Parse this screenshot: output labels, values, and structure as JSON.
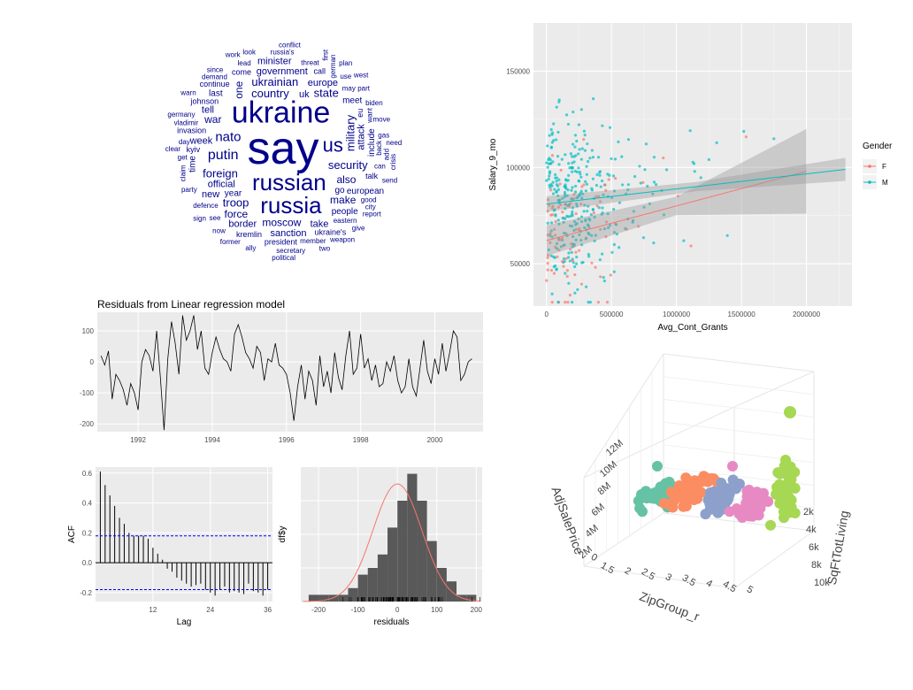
{
  "colors": {
    "ggplot_panel": "#ebebeb",
    "grid": "#ffffff",
    "female": "#f8766d",
    "male": "#00bfc4",
    "wordcloud": "#00008b",
    "acf_bound": "#0000ff",
    "hist_bar": "#595959",
    "density": "#f8766d",
    "cluster_colors": [
      "#66c2a5",
      "#fc8d62",
      "#8da0cb",
      "#e78ac3",
      "#a6d854"
    ]
  },
  "wordcloud": {
    "words": [
      {
        "text": "say",
        "size": 52
      },
      {
        "text": "ukraine",
        "size": 34
      },
      {
        "text": "russian",
        "size": 26
      },
      {
        "text": "russia",
        "size": 26
      },
      {
        "text": "us",
        "size": 22
      },
      {
        "text": "putin",
        "size": 16
      },
      {
        "text": "nato",
        "size": 15
      },
      {
        "text": "country",
        "size": 13
      },
      {
        "text": "security",
        "size": 13
      },
      {
        "text": "ukrainian",
        "size": 13
      },
      {
        "text": "foreign",
        "size": 13
      },
      {
        "text": "military",
        "size": 13
      },
      {
        "text": "troop",
        "size": 13
      },
      {
        "text": "state",
        "size": 13
      },
      {
        "text": "moscow",
        "size": 12
      },
      {
        "text": "also",
        "size": 12
      },
      {
        "text": "make",
        "size": 12
      },
      {
        "text": "war",
        "size": 12
      },
      {
        "text": "one",
        "size": 12
      },
      {
        "text": "force",
        "size": 12
      },
      {
        "text": "official",
        "size": 11
      },
      {
        "text": "europe",
        "size": 11
      },
      {
        "text": "government",
        "size": 11
      },
      {
        "text": "sanction",
        "size": 11
      },
      {
        "text": "week",
        "size": 11
      },
      {
        "text": "attack",
        "size": 11
      },
      {
        "text": "take",
        "size": 11
      },
      {
        "text": "tell",
        "size": 11
      },
      {
        "text": "border",
        "size": 11
      },
      {
        "text": "uk",
        "size": 11
      },
      {
        "text": "minister",
        "size": 11
      },
      {
        "text": "new",
        "size": 11
      },
      {
        "text": "include",
        "size": 10
      },
      {
        "text": "european",
        "size": 10
      },
      {
        "text": "people",
        "size": 10
      },
      {
        "text": "year",
        "size": 10
      },
      {
        "text": "go",
        "size": 10
      },
      {
        "text": "meet",
        "size": 10
      },
      {
        "text": "last",
        "size": 10
      },
      {
        "text": "time",
        "size": 10
      },
      {
        "text": "kyiv",
        "size": 9
      },
      {
        "text": "invasion",
        "size": 9
      },
      {
        "text": "president",
        "size": 9
      },
      {
        "text": "johnson",
        "size": 9
      },
      {
        "text": "ukraine's",
        "size": 9
      },
      {
        "text": "call",
        "size": 9
      },
      {
        "text": "eu",
        "size": 9
      },
      {
        "text": "come",
        "size": 9
      },
      {
        "text": "continue",
        "size": 9
      },
      {
        "text": "talk",
        "size": 9
      },
      {
        "text": "kremlin",
        "size": 9
      },
      {
        "text": "eastern",
        "size": 8
      },
      {
        "text": "defence",
        "size": 8
      },
      {
        "text": "want",
        "size": 8
      },
      {
        "text": "threat",
        "size": 8
      },
      {
        "text": "may",
        "size": 8
      },
      {
        "text": "lead",
        "size": 8
      },
      {
        "text": "good",
        "size": 8
      },
      {
        "text": "can",
        "size": 8
      },
      {
        "text": "see",
        "size": 8
      },
      {
        "text": "back",
        "size": 8
      },
      {
        "text": "member",
        "size": 8
      },
      {
        "text": "vladimir",
        "size": 8
      },
      {
        "text": "day",
        "size": 8
      },
      {
        "text": "party",
        "size": 8
      },
      {
        "text": "use",
        "size": 8
      },
      {
        "text": "demand",
        "size": 8
      },
      {
        "text": "german",
        "size": 8
      },
      {
        "text": "russia's",
        "size": 8
      },
      {
        "text": "biden",
        "size": 8
      },
      {
        "text": "get",
        "size": 8
      },
      {
        "text": "secretary",
        "size": 8
      },
      {
        "text": "part",
        "size": 8
      },
      {
        "text": "move",
        "size": 8
      },
      {
        "text": "claim",
        "size": 8
      },
      {
        "text": "city",
        "size": 8
      },
      {
        "text": "ally",
        "size": 8
      },
      {
        "text": "germany",
        "size": 8
      },
      {
        "text": "since",
        "size": 8
      },
      {
        "text": "gas",
        "size": 8
      },
      {
        "text": "now",
        "size": 8
      },
      {
        "text": "add",
        "size": 8
      },
      {
        "text": "look",
        "size": 8
      },
      {
        "text": "former",
        "size": 8
      },
      {
        "text": "conflict",
        "size": 8
      },
      {
        "text": "sign",
        "size": 8
      },
      {
        "text": "report",
        "size": 8
      },
      {
        "text": "weapon",
        "size": 8
      },
      {
        "text": "first",
        "size": 8
      },
      {
        "text": "clear",
        "size": 8
      },
      {
        "text": "plan",
        "size": 8
      },
      {
        "text": "west",
        "size": 8
      },
      {
        "text": "political",
        "size": 8
      },
      {
        "text": "need",
        "size": 8
      },
      {
        "text": "send",
        "size": 8
      },
      {
        "text": "crisis",
        "size": 8
      },
      {
        "text": "give",
        "size": 8
      },
      {
        "text": "two",
        "size": 8
      },
      {
        "text": "warn",
        "size": 8
      },
      {
        "text": "work",
        "size": 8
      }
    ]
  },
  "chart_data": [
    {
      "type": "scatter",
      "xlabel": "Avg_Cont_Grants",
      "ylabel": "Salary_9_mo",
      "x_ticks": [
        "0",
        "500000",
        "1000000",
        "1500000",
        "2000000"
      ],
      "y_ticks": [
        "50000",
        "100000",
        "150000"
      ],
      "xlim": [
        -100000,
        2350000
      ],
      "ylim": [
        28000,
        175000
      ],
      "legend_title": "Gender",
      "legend_position": "right",
      "series": [
        {
          "name": "F",
          "trend": [
            [
              0,
              62000
            ],
            [
              2000000,
              98000
            ]
          ],
          "ci_half_width_ends": [
            8000,
            22000
          ]
        },
        {
          "name": "M",
          "trend": [
            [
              0,
              81000
            ],
            [
              2300000,
              99000
            ]
          ],
          "ci_half_width_ends": [
            4000,
            6000
          ]
        }
      ]
    },
    {
      "type": "line",
      "title": "Residuals from Linear regression model",
      "x_ticks": [
        "1992",
        "1994",
        "1996",
        "1998",
        "2000"
      ],
      "y_ticks": [
        "100",
        "0",
        "-100",
        "-200"
      ],
      "xlim": [
        1990.9,
        2001.3
      ],
      "ylim": [
        -225,
        160
      ],
      "x": [
        1991.0,
        1991.1,
        1991.2,
        1991.3,
        1991.4,
        1991.5,
        1991.6,
        1991.7,
        1991.8,
        1991.9,
        1992.0,
        1992.1,
        1992.2,
        1992.3,
        1992.4,
        1992.5,
        1992.6,
        1992.7,
        1992.8,
        1992.9,
        1993.0,
        1993.1,
        1993.2,
        1993.3,
        1993.4,
        1993.5,
        1993.6,
        1993.7,
        1993.8,
        1993.9,
        1994.0,
        1994.1,
        1994.2,
        1994.3,
        1994.4,
        1994.5,
        1994.6,
        1994.7,
        1994.8,
        1994.9,
        1995.0,
        1995.1,
        1995.2,
        1995.3,
        1995.4,
        1995.5,
        1995.6,
        1995.7,
        1995.8,
        1995.9,
        1996.0,
        1996.1,
        1996.2,
        1996.3,
        1996.4,
        1996.5,
        1996.6,
        1996.7,
        1996.8,
        1996.9,
        1997.0,
        1997.1,
        1997.2,
        1997.3,
        1997.4,
        1997.5,
        1997.6,
        1997.7,
        1997.8,
        1997.9,
        1998.0,
        1998.1,
        1998.2,
        1998.3,
        1998.4,
        1998.5,
        1998.6,
        1998.7,
        1998.8,
        1998.9,
        1999.0,
        1999.1,
        1999.2,
        1999.3,
        1999.4,
        1999.5,
        1999.6,
        1999.7,
        1999.8,
        1999.9,
        2000.0,
        2000.1,
        2000.2,
        2000.3,
        2000.4,
        2000.5,
        2000.6,
        2000.7,
        2000.8,
        2000.9,
        2001.0
      ],
      "values": [
        20,
        -10,
        35,
        -120,
        -40,
        -60,
        -90,
        -140,
        -70,
        -100,
        -155,
        0,
        40,
        20,
        -30,
        100,
        -50,
        -220,
        10,
        130,
        60,
        -40,
        150,
        70,
        100,
        150,
        40,
        100,
        -20,
        -40,
        30,
        80,
        40,
        10,
        0,
        -30,
        90,
        120,
        80,
        30,
        10,
        -20,
        50,
        30,
        -60,
        10,
        0,
        60,
        -10,
        -20,
        -40,
        -100,
        -190,
        -80,
        -10,
        -120,
        -30,
        -60,
        -140,
        20,
        -80,
        -30,
        -100,
        30,
        -50,
        -90,
        20,
        100,
        -40,
        -20,
        90,
        -20,
        10,
        -60,
        -10,
        -80,
        -70,
        0,
        -30,
        20,
        -60,
        -100,
        -80,
        10,
        -80,
        -110,
        -20,
        70,
        -30,
        -70,
        10,
        -40,
        60,
        -30,
        30,
        100,
        80,
        -60,
        -40,
        0,
        10
      ]
    },
    {
      "type": "bar",
      "xlabel": "Lag",
      "ylabel": "ACF",
      "x_ticks": [
        "12",
        "24",
        "36"
      ],
      "y_ticks": [
        "0.6",
        "0.4",
        "0.2",
        "0.0",
        "-0.2"
      ],
      "ylim": [
        -0.26,
        0.64
      ],
      "xlim": [
        0,
        37
      ],
      "confidence_bound": 0.18,
      "categories": [
        1,
        2,
        3,
        4,
        5,
        6,
        7,
        8,
        9,
        10,
        11,
        12,
        13,
        14,
        15,
        16,
        17,
        18,
        19,
        20,
        21,
        22,
        23,
        24,
        25,
        26,
        27,
        28,
        29,
        30,
        31,
        32,
        33,
        34,
        35,
        36
      ],
      "values": [
        0.61,
        0.52,
        0.45,
        0.38,
        0.3,
        0.26,
        0.2,
        0.18,
        0.18,
        0.18,
        0.16,
        0.1,
        0.06,
        0.02,
        -0.04,
        -0.06,
        -0.1,
        -0.12,
        -0.14,
        -0.16,
        -0.15,
        -0.14,
        -0.18,
        -0.2,
        -0.22,
        -0.18,
        -0.16,
        -0.2,
        -0.19,
        -0.2,
        -0.21,
        -0.14,
        -0.19,
        -0.2,
        -0.22,
        -0.18
      ]
    },
    {
      "type": "bar",
      "xlabel": "residuals",
      "ylabel": "df$y",
      "x_ticks": [
        "-200",
        "-100",
        "0",
        "100",
        "200"
      ],
      "xlim": [
        -245,
        215
      ],
      "ylim": [
        0,
        20
      ],
      "bin_width": 25,
      "bin_start": -225,
      "values": [
        1,
        1,
        1,
        1,
        2,
        4,
        5,
        7,
        11,
        15,
        19,
        15,
        9,
        5,
        3,
        1,
        1
      ]
    },
    {
      "type": "scatter",
      "xlabel": "ZipGroup_r",
      "ylabel": "AdjSalePrice",
      "zlabel": "SqFtTotLiving",
      "x_ticks": [
        "1.5",
        "2",
        "2.5",
        "3",
        "3.5",
        "4",
        "4.5",
        "5"
      ],
      "y_ticks": [
        "2M",
        "4M",
        "6M",
        "8M",
        "10M",
        "12M"
      ],
      "z_ticks": [
        "2k",
        "4k",
        "6k",
        "8k",
        "10k"
      ],
      "extra_tick": "0"
    }
  ]
}
